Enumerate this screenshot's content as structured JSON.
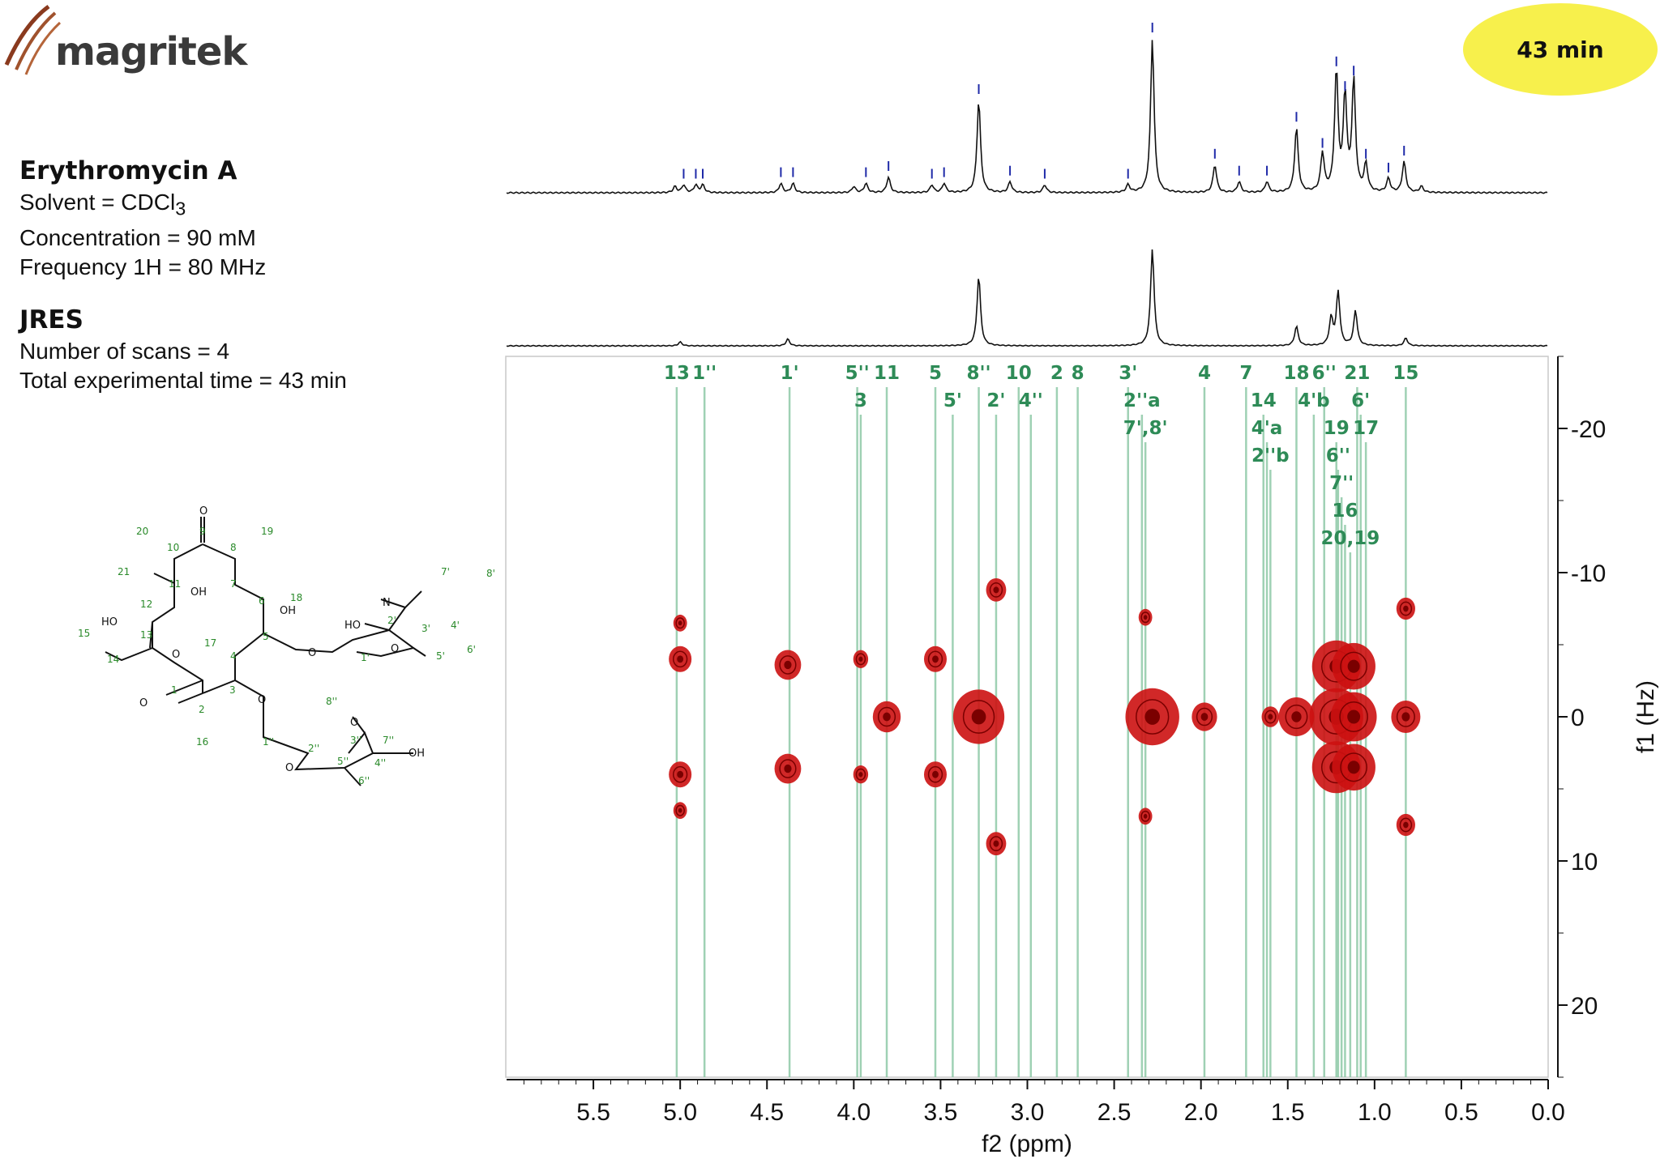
{
  "brand": {
    "name": "magritek"
  },
  "badge": {
    "text": "43 min"
  },
  "info": {
    "compound": "Erythromycin A",
    "solvent_prefix": "Solvent = CDCl",
    "solvent_sub": "3",
    "concentration": "Concentration = 90 mM",
    "frequency": "Frequency 1H = 80 MHz",
    "experiment": "JRES",
    "scans": "Number of scans = 4",
    "time": "Total experimental time = 43 min"
  },
  "chart_data": {
    "type": "heatmap",
    "title": "",
    "xlabel": "f2 (ppm)",
    "ylabel": "f1 (Hz)",
    "xlim": [
      6.0,
      0.0
    ],
    "ylim": [
      -25,
      25
    ],
    "x_ticks": [
      5.5,
      5.0,
      4.5,
      4.0,
      3.5,
      3.0,
      2.5,
      2.0,
      1.5,
      1.0,
      0.5,
      0.0
    ],
    "x_tick_labels": [
      "5.5",
      "5.0",
      "4.5",
      "4.0",
      "3.5",
      "3.0",
      "2.5",
      "2.0",
      "1.5",
      "1.0",
      "0.5",
      "0.0"
    ],
    "y_ticks": [
      -20,
      -10,
      0,
      10,
      20
    ],
    "y_tick_labels": [
      "-20",
      "-10",
      "0",
      "10",
      "20"
    ],
    "spectrum_1d_peaks": [
      {
        "ppm": 5.03,
        "h": 0.04
      },
      {
        "ppm": 4.98,
        "h": 0.05
      },
      {
        "ppm": 4.91,
        "h": 0.05
      },
      {
        "ppm": 4.87,
        "h": 0.05
      },
      {
        "ppm": 4.42,
        "h": 0.06
      },
      {
        "ppm": 4.35,
        "h": 0.06
      },
      {
        "ppm": 4.0,
        "h": 0.04
      },
      {
        "ppm": 3.93,
        "h": 0.06
      },
      {
        "ppm": 3.8,
        "h": 0.1
      },
      {
        "ppm": 3.55,
        "h": 0.05
      },
      {
        "ppm": 3.48,
        "h": 0.06
      },
      {
        "ppm": 3.28,
        "h": 0.6
      },
      {
        "ppm": 3.1,
        "h": 0.07
      },
      {
        "ppm": 2.9,
        "h": 0.05
      },
      {
        "ppm": 2.42,
        "h": 0.05
      },
      {
        "ppm": 2.28,
        "h": 1.0
      },
      {
        "ppm": 1.92,
        "h": 0.18
      },
      {
        "ppm": 1.78,
        "h": 0.07
      },
      {
        "ppm": 1.62,
        "h": 0.07
      },
      {
        "ppm": 1.45,
        "h": 0.42
      },
      {
        "ppm": 1.3,
        "h": 0.25
      },
      {
        "ppm": 1.22,
        "h": 0.78
      },
      {
        "ppm": 1.17,
        "h": 0.62
      },
      {
        "ppm": 1.12,
        "h": 0.72
      },
      {
        "ppm": 1.05,
        "h": 0.18
      },
      {
        "ppm": 0.92,
        "h": 0.09
      },
      {
        "ppm": 0.83,
        "h": 0.2
      },
      {
        "ppm": 0.73,
        "h": 0.04
      }
    ],
    "projection_peaks": [
      {
        "ppm": 5.0,
        "h": 0.04
      },
      {
        "ppm": 4.38,
        "h": 0.07
      },
      {
        "ppm": 3.28,
        "h": 0.72
      },
      {
        "ppm": 2.28,
        "h": 1.0
      },
      {
        "ppm": 1.45,
        "h": 0.2
      },
      {
        "ppm": 1.25,
        "h": 0.28
      },
      {
        "ppm": 1.21,
        "h": 0.55
      },
      {
        "ppm": 1.11,
        "h": 0.36
      },
      {
        "ppm": 0.82,
        "h": 0.08
      }
    ],
    "assignments": [
      {
        "ppm": 5.02,
        "row": 0,
        "label": "13"
      },
      {
        "ppm": 4.86,
        "row": 0,
        "label": "1''"
      },
      {
        "ppm": 4.37,
        "row": 0,
        "label": "1'"
      },
      {
        "ppm": 3.98,
        "row": 0,
        "label": "5''"
      },
      {
        "ppm": 3.96,
        "row": 1,
        "label": "3"
      },
      {
        "ppm": 3.81,
        "row": 0,
        "label": "11"
      },
      {
        "ppm": 3.53,
        "row": 0,
        "label": "5"
      },
      {
        "ppm": 3.43,
        "row": 1,
        "label": "5'"
      },
      {
        "ppm": 3.28,
        "row": 0,
        "label": "8''"
      },
      {
        "ppm": 3.18,
        "row": 1,
        "label": "2'"
      },
      {
        "ppm": 3.05,
        "row": 0,
        "label": "10"
      },
      {
        "ppm": 2.98,
        "row": 1,
        "label": "4''"
      },
      {
        "ppm": 2.83,
        "row": 0,
        "label": "2"
      },
      {
        "ppm": 2.71,
        "row": 0,
        "label": "8"
      },
      {
        "ppm": 2.42,
        "row": 0,
        "label": "3'"
      },
      {
        "ppm": 2.34,
        "row": 1,
        "label": "2''a"
      },
      {
        "ppm": 2.32,
        "row": 2,
        "label": "7',8'"
      },
      {
        "ppm": 1.98,
        "row": 0,
        "label": "4"
      },
      {
        "ppm": 1.74,
        "row": 0,
        "label": "7"
      },
      {
        "ppm": 1.64,
        "row": 1,
        "label": "14"
      },
      {
        "ppm": 1.62,
        "row": 2,
        "label": "4'a"
      },
      {
        "ppm": 1.6,
        "row": 3,
        "label": "2''b"
      },
      {
        "ppm": 1.45,
        "row": 0,
        "label": "18"
      },
      {
        "ppm": 1.35,
        "row": 1,
        "label": "4'b"
      },
      {
        "ppm": 1.29,
        "row": 0,
        "label": "6''"
      },
      {
        "ppm": 1.22,
        "row": 2,
        "label": "19"
      },
      {
        "ppm": 1.21,
        "row": 3,
        "label": "6''"
      },
      {
        "ppm": 1.19,
        "row": 4,
        "label": "7''"
      },
      {
        "ppm": 1.17,
        "row": 5,
        "label": "16"
      },
      {
        "ppm": 1.14,
        "row": 6,
        "label": "20,19"
      },
      {
        "ppm": 1.1,
        "row": 0,
        "label": "21"
      },
      {
        "ppm": 1.08,
        "row": 1,
        "label": "6'"
      },
      {
        "ppm": 1.05,
        "row": 2,
        "label": "17"
      },
      {
        "ppm": 0.82,
        "row": 0,
        "label": "15"
      }
    ],
    "cross_peaks": [
      {
        "ppm": 5.0,
        "hz": -4.0,
        "size": 1
      },
      {
        "ppm": 5.0,
        "hz": 4.0,
        "size": 1
      },
      {
        "ppm": 5.0,
        "hz": -6.5,
        "size": 0.3
      },
      {
        "ppm": 5.0,
        "hz": 6.5,
        "size": 0.3
      },
      {
        "ppm": 4.38,
        "hz": -3.6,
        "size": 1.3
      },
      {
        "ppm": 4.38,
        "hz": 3.6,
        "size": 1.3
      },
      {
        "ppm": 3.96,
        "hz": -4.0,
        "size": 0.4
      },
      {
        "ppm": 3.96,
        "hz": 4.0,
        "size": 0.4
      },
      {
        "ppm": 3.81,
        "hz": 0.0,
        "size": 1.4
      },
      {
        "ppm": 3.53,
        "hz": -4.0,
        "size": 1
      },
      {
        "ppm": 3.53,
        "hz": 4.0,
        "size": 1
      },
      {
        "ppm": 3.28,
        "hz": 0.0,
        "size": 3.2
      },
      {
        "ppm": 3.18,
        "hz": -8.8,
        "size": 0.8
      },
      {
        "ppm": 3.18,
        "hz": 8.8,
        "size": 0.8
      },
      {
        "ppm": 2.32,
        "hz": -6.9,
        "size": 0.3
      },
      {
        "ppm": 2.32,
        "hz": 6.9,
        "size": 0.3
      },
      {
        "ppm": 2.28,
        "hz": 0.0,
        "size": 3.4
      },
      {
        "ppm": 1.98,
        "hz": 0.0,
        "size": 1.2
      },
      {
        "ppm": 1.6,
        "hz": 0.0,
        "size": 0.6
      },
      {
        "ppm": 1.45,
        "hz": 0.0,
        "size": 2
      },
      {
        "ppm": 1.22,
        "hz": -3.5,
        "size": 3
      },
      {
        "ppm": 1.22,
        "hz": 0.0,
        "size": 3.4
      },
      {
        "ppm": 1.22,
        "hz": 3.5,
        "size": 3
      },
      {
        "ppm": 1.12,
        "hz": -3.5,
        "size": 2.6
      },
      {
        "ppm": 1.12,
        "hz": 0.0,
        "size": 2.8
      },
      {
        "ppm": 1.12,
        "hz": 3.5,
        "size": 2.6
      },
      {
        "ppm": 0.82,
        "hz": -7.5,
        "size": 0.7
      },
      {
        "ppm": 0.82,
        "hz": 0.0,
        "size": 1.5
      },
      {
        "ppm": 0.82,
        "hz": 7.5,
        "size": 0.7
      }
    ],
    "colors": {
      "contour": "#cc1111",
      "contour_core": "#7a0000",
      "guide": "#8fc9a8",
      "assign": "#2e8b57",
      "ticks": "#1f2aa8"
    }
  },
  "molecule": {
    "numbers": [
      "20",
      "9",
      "19",
      "10",
      "8",
      "21",
      "11",
      "7",
      "6",
      "18",
      "12",
      "13",
      "14",
      "15",
      "5",
      "17",
      "4",
      "1",
      "3",
      "2",
      "16",
      "7'",
      "8'",
      "2'",
      "3'",
      "4'",
      "1'",
      "5'",
      "6'",
      "8''",
      "3''",
      "7''",
      "1''",
      "2''",
      "5''",
      "4''",
      "6''"
    ],
    "atoms": [
      "O",
      "OH",
      "OH",
      "HO",
      "O",
      "O",
      "O",
      "HO",
      "N",
      "O",
      "O",
      "O",
      "O",
      "OH"
    ]
  }
}
